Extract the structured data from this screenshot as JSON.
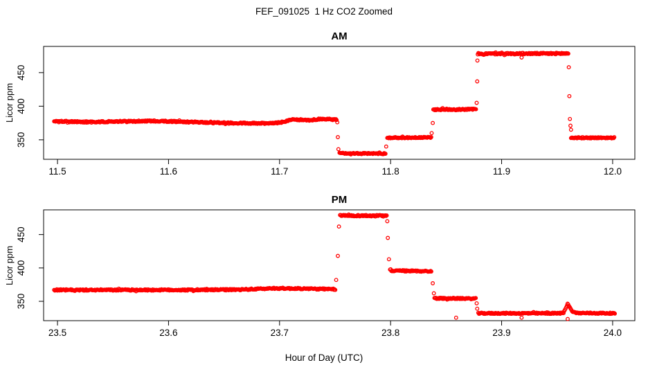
{
  "page": {
    "title": "FEF_091025  1 Hz CO2 Zoomed",
    "xlabel": "Hour of Day (UTC)"
  },
  "colors": {
    "points": "#FF0000",
    "axis": "#000000",
    "background": "#FFFFFF"
  },
  "chart_data": [
    {
      "type": "scatter",
      "title": "AM",
      "ylabel": "Licor ppm",
      "marker": "open-circle",
      "x_ticks": [
        11.5,
        11.6,
        11.7,
        11.8,
        11.9,
        12.0
      ],
      "y_ticks": [
        350,
        400,
        450
      ],
      "xlim": [
        11.4875,
        12.02
      ],
      "ylim": [
        321,
        489
      ],
      "grid": false,
      "segments": [
        {
          "x_start": 11.497,
          "x_end": 11.752,
          "jitter": 1.0,
          "profile": [
            [
              11.497,
              377.5
            ],
            [
              11.53,
              376.5
            ],
            [
              11.56,
              377.5
            ],
            [
              11.59,
              378
            ],
            [
              11.62,
              376.5
            ],
            [
              11.655,
              375
            ],
            [
              11.685,
              374.5
            ],
            [
              11.7,
              375.5
            ],
            [
              11.712,
              380
            ],
            [
              11.725,
              379
            ],
            [
              11.738,
              381
            ],
            [
              11.752,
              380
            ]
          ]
        },
        {
          "x_start": 11.754,
          "x_end": 11.7955,
          "jitter": 0.9,
          "profile": [
            [
              11.754,
              330
            ],
            [
              11.7955,
              329.5
            ]
          ]
        },
        {
          "x_start": 11.797,
          "x_end": 11.837,
          "jitter": 0.9,
          "profile": [
            [
              11.797,
              353
            ],
            [
              11.837,
              353.5
            ]
          ]
        },
        {
          "x_start": 11.8385,
          "x_end": 11.877,
          "jitter": 1.0,
          "profile": [
            [
              11.8385,
              395
            ],
            [
              11.877,
              395.5
            ]
          ]
        },
        {
          "x_start": 11.8785,
          "x_end": 11.9605,
          "jitter": 1.1,
          "profile": [
            [
              11.8785,
              478
            ],
            [
              11.96,
              478.5
            ]
          ]
        },
        {
          "x_start": 11.9625,
          "x_end": 12.002,
          "jitter": 0.9,
          "profile": [
            [
              11.9625,
              353
            ],
            [
              12.002,
              353
            ]
          ]
        }
      ],
      "transition_points": [
        [
          11.752,
          376
        ],
        [
          11.7525,
          354
        ],
        [
          11.753,
          336
        ],
        [
          11.796,
          340
        ],
        [
          11.837,
          360
        ],
        [
          11.838,
          375
        ],
        [
          11.8775,
          405
        ],
        [
          11.878,
          437
        ],
        [
          11.8782,
          468
        ],
        [
          11.918,
          472.5
        ],
        [
          11.9605,
          458
        ],
        [
          11.961,
          415
        ],
        [
          11.9615,
          381
        ],
        [
          11.962,
          371
        ],
        [
          11.9625,
          365
        ]
      ]
    },
    {
      "type": "scatter",
      "title": "PM",
      "ylabel": "Licor ppm",
      "marker": "open-circle",
      "x_ticks": [
        23.5,
        23.6,
        23.7,
        23.8,
        23.9,
        24.0
      ],
      "y_ticks": [
        350,
        400,
        450
      ],
      "xlim": [
        23.4875,
        24.02
      ],
      "ylim": [
        321,
        487
      ],
      "grid": false,
      "segments": [
        {
          "x_start": 23.497,
          "x_end": 23.7505,
          "jitter": 1.0,
          "profile": [
            [
              23.497,
              367
            ],
            [
              23.56,
              367
            ],
            [
              23.62,
              367
            ],
            [
              23.665,
              367.5
            ],
            [
              23.695,
              369.5
            ],
            [
              23.72,
              369
            ],
            [
              23.7505,
              368
            ]
          ]
        },
        {
          "x_start": 23.7545,
          "x_end": 23.797,
          "jitter": 1.1,
          "profile": [
            [
              23.7545,
              478.5
            ],
            [
              23.797,
              478
            ]
          ]
        },
        {
          "x_start": 23.7995,
          "x_end": 23.837,
          "jitter": 1.0,
          "profile": [
            [
              23.7995,
              396
            ],
            [
              23.837,
              395
            ]
          ]
        },
        {
          "x_start": 23.8395,
          "x_end": 23.877,
          "jitter": 0.9,
          "profile": [
            [
              23.8395,
              354.5
            ],
            [
              23.877,
              354
            ]
          ]
        },
        {
          "x_start": 23.879,
          "x_end": 24.002,
          "jitter": 0.9,
          "profile": [
            [
              23.879,
              332
            ],
            [
              23.952,
              332
            ],
            [
              23.956,
              333
            ],
            [
              23.9595,
              347
            ],
            [
              23.963,
              336
            ],
            [
              23.967,
              332.5
            ],
            [
              24.002,
              332
            ]
          ]
        }
      ],
      "transition_points": [
        [
          23.751,
          382
        ],
        [
          23.7525,
          418
        ],
        [
          23.7535,
          462
        ],
        [
          23.797,
          470
        ],
        [
          23.7975,
          445
        ],
        [
          23.7985,
          413
        ],
        [
          23.838,
          377
        ],
        [
          23.839,
          362
        ],
        [
          23.859,
          325.5
        ],
        [
          23.8775,
          347
        ],
        [
          23.878,
          339
        ],
        [
          23.918,
          325.5
        ],
        [
          23.9595,
          323.5
        ]
      ]
    }
  ]
}
